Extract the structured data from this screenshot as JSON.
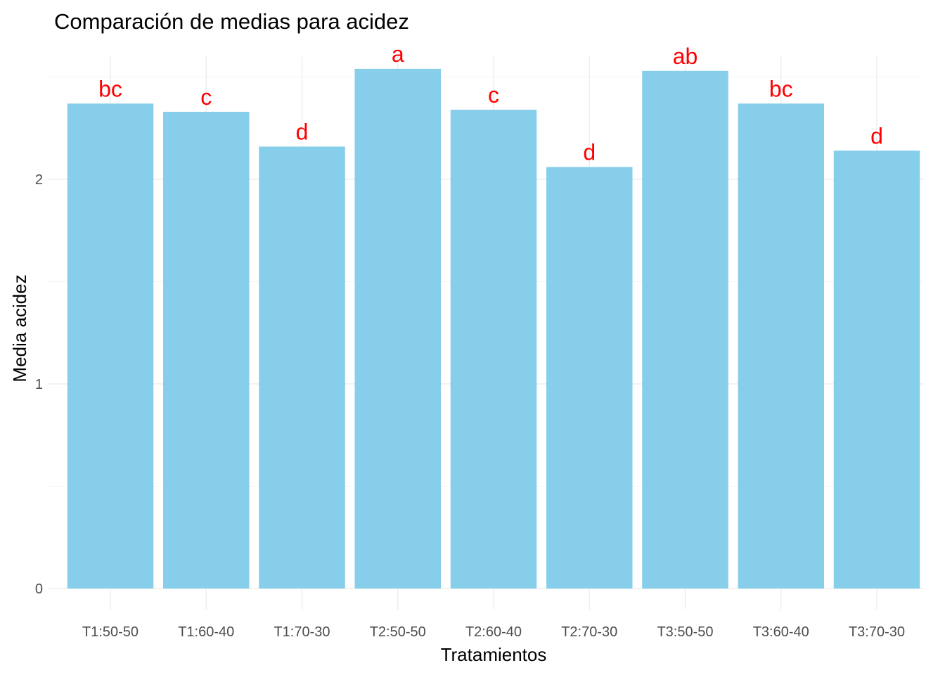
{
  "chart_data": {
    "type": "bar",
    "title": "Comparación de medias para acidez",
    "xlabel": "Tratamientos",
    "ylabel": "Media acidez",
    "categories": [
      "T1:50-50",
      "T1:60-40",
      "T1:70-30",
      "T2:50-50",
      "T2:60-40",
      "T2:70-30",
      "T3:50-50",
      "T3:60-40",
      "T3:70-30"
    ],
    "values": [
      2.37,
      2.33,
      2.16,
      2.54,
      2.34,
      2.06,
      2.53,
      2.37,
      2.14
    ],
    "significance_letters": [
      "bc",
      "c",
      "d",
      "a",
      "c",
      "d",
      "ab",
      "bc",
      "d"
    ],
    "y_ticks": [
      0,
      1,
      2
    ],
    "ylim": [
      0,
      2.6
    ],
    "grid": true,
    "bar_color": "#87CEEB",
    "letter_color": "#FF0000"
  }
}
